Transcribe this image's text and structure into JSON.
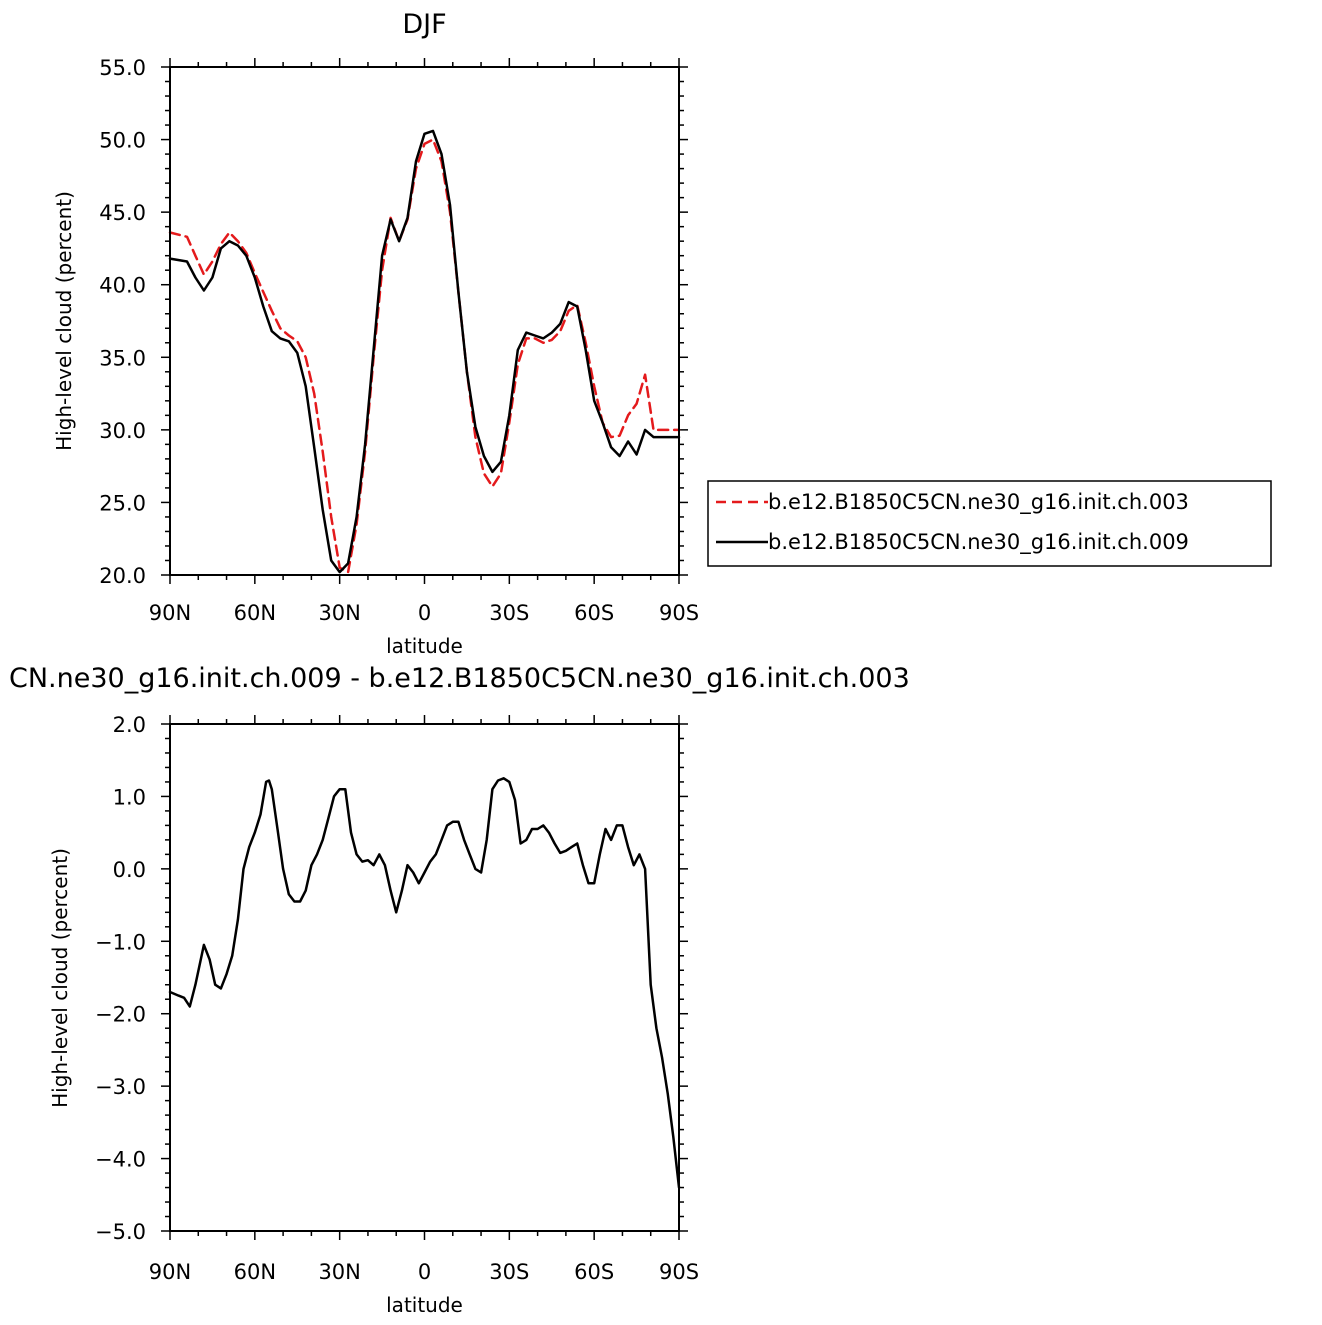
{
  "chart_data": [
    {
      "type": "line",
      "title": "DJF",
      "xlabel": "latitude",
      "ylabel": "High-level cloud (percent)",
      "xlim": [
        -90,
        90
      ],
      "ylim": [
        20,
        55
      ],
      "x_ticks": [
        -90,
        -60,
        -30,
        0,
        30,
        60,
        90
      ],
      "x_tick_labels": [
        "90N",
        "60N",
        "30N",
        "0",
        "30S",
        "60S",
        "90S"
      ],
      "y_ticks": [
        20,
        25,
        30,
        35,
        40,
        45,
        50,
        55
      ],
      "y_tick_labels": [
        "20.0",
        "25.0",
        "30.0",
        "35.0",
        "40.0",
        "45.0",
        "50.0",
        "55.0"
      ],
      "legend_placement": "right",
      "series": [
        {
          "name": "b.e12.B1850C5CN.ne30_g16.init.ch.003",
          "color": "#e41a1c",
          "dash": "dashed",
          "x": [
            -90,
            -84,
            -81,
            -78,
            -75,
            -72,
            -69,
            -66,
            -63,
            -60,
            -57,
            -54,
            -51,
            -48,
            -45,
            -42,
            -39,
            -36,
            -33,
            -30,
            -27,
            -24,
            -21,
            -18,
            -15,
            -12,
            -9,
            -6,
            -3,
            0,
            3,
            6,
            9,
            12,
            15,
            18,
            21,
            24,
            27,
            30,
            33,
            36,
            39,
            42,
            45,
            48,
            51,
            54,
            57,
            60,
            63,
            66,
            69,
            72,
            75,
            78,
            81,
            84,
            86,
            88,
            90
          ],
          "y": [
            43.6,
            43.3,
            42.0,
            40.7,
            41.6,
            42.8,
            43.6,
            43.0,
            42.2,
            40.8,
            39.5,
            38.2,
            37.0,
            36.5,
            36.1,
            35.0,
            32.5,
            28.5,
            24.0,
            20.5,
            20.2,
            23.5,
            28.5,
            35.0,
            41.0,
            44.6,
            43.0,
            44.5,
            48.0,
            49.7,
            50.0,
            48.5,
            45.0,
            39.5,
            34.0,
            29.5,
            27.0,
            26.1,
            27.0,
            30.5,
            34.5,
            36.3,
            36.3,
            36.0,
            36.2,
            36.8,
            38.2,
            38.6,
            36.0,
            33.0,
            30.5,
            29.5,
            29.6,
            31.0,
            31.8,
            33.8,
            30.0,
            30.0,
            30.0,
            30.0,
            30.0
          ]
        },
        {
          "name": "b.e12.B1850C5CN.ne30_g16.init.ch.009",
          "color": "#000000",
          "dash": "solid",
          "x": [
            -90,
            -84,
            -81,
            -78,
            -75,
            -72,
            -69,
            -66,
            -63,
            -60,
            -57,
            -54,
            -51,
            -48,
            -45,
            -42,
            -39,
            -36,
            -33,
            -30,
            -27,
            -24,
            -21,
            -18,
            -15,
            -12,
            -9,
            -6,
            -3,
            0,
            3,
            6,
            9,
            12,
            15,
            18,
            21,
            24,
            27,
            30,
            33,
            36,
            39,
            42,
            45,
            48,
            51,
            54,
            57,
            60,
            63,
            66,
            69,
            72,
            75,
            78,
            81,
            84,
            86,
            88,
            90
          ],
          "y": [
            41.8,
            41.6,
            40.5,
            39.6,
            40.5,
            42.5,
            43.0,
            42.7,
            42.0,
            40.5,
            38.5,
            36.8,
            36.3,
            36.1,
            35.3,
            33.0,
            28.8,
            24.5,
            21.0,
            20.2,
            20.8,
            24.0,
            29.0,
            35.5,
            42.0,
            44.5,
            43.0,
            44.6,
            48.5,
            50.4,
            50.6,
            49.0,
            45.5,
            39.5,
            34.0,
            30.2,
            28.2,
            27.1,
            27.8,
            31.0,
            35.5,
            36.7,
            36.5,
            36.3,
            36.7,
            37.3,
            38.8,
            38.5,
            35.5,
            32.0,
            30.5,
            28.8,
            28.2,
            29.2,
            28.3,
            30.0,
            29.5,
            29.5,
            29.5,
            29.5,
            29.5
          ]
        }
      ]
    },
    {
      "type": "line",
      "title": "CN.ne30_g16.init.ch.009 - b.e12.B1850C5CN.ne30_g16.init.ch.003",
      "xlabel": "latitude",
      "ylabel": "High-level cloud (percent)",
      "xlim": [
        -90,
        90
      ],
      "ylim": [
        -5,
        2
      ],
      "x_ticks": [
        -90,
        -60,
        -30,
        0,
        30,
        60,
        90
      ],
      "x_tick_labels": [
        "90N",
        "60N",
        "30N",
        "0",
        "30S",
        "60S",
        "90S"
      ],
      "y_ticks": [
        -5,
        -4,
        -3,
        -2,
        -1,
        0,
        1,
        2
      ],
      "y_tick_labels": [
        "−5.0",
        "−4.0",
        "−3.0",
        "−2.0",
        "−1.0",
        "0.0",
        "1.0",
        "2.0"
      ],
      "series": [
        {
          "color": "#000000",
          "dash": "solid",
          "x": [
            -90,
            -87,
            -85,
            -83,
            -81,
            -78,
            -76,
            -74,
            -72,
            -70,
            -68,
            -66,
            -64,
            -62,
            -60,
            -58,
            -56,
            -55,
            -54,
            -52,
            -50,
            -48,
            -46,
            -44,
            -42,
            -40,
            -38,
            -36,
            -34,
            -32,
            -31,
            -30,
            -28,
            -26,
            -24,
            -22,
            -20,
            -18,
            -16,
            -14,
            -12,
            -10,
            -8,
            -6,
            -4,
            -2,
            0,
            2,
            4,
            6,
            8,
            10,
            12,
            14,
            16,
            18,
            20,
            22,
            24,
            26,
            28,
            30,
            32,
            34,
            36,
            38,
            40,
            42,
            44,
            46,
            48,
            50,
            52,
            54,
            56,
            58,
            60,
            62,
            64,
            66,
            68,
            70,
            72,
            74,
            76,
            78,
            80,
            82,
            84,
            86,
            88,
            90
          ],
          "y": [
            -1.7,
            -1.75,
            -1.78,
            -1.9,
            -1.6,
            -1.05,
            -1.25,
            -1.6,
            -1.65,
            -1.45,
            -1.2,
            -0.7,
            0.0,
            0.3,
            0.5,
            0.75,
            1.2,
            1.22,
            1.1,
            0.55,
            0.0,
            -0.35,
            -0.45,
            -0.45,
            -0.3,
            0.05,
            0.2,
            0.4,
            0.7,
            1.0,
            1.05,
            1.1,
            1.1,
            0.5,
            0.2,
            0.1,
            0.12,
            0.05,
            0.2,
            0.05,
            -0.3,
            -0.6,
            -0.3,
            0.05,
            -0.05,
            -0.2,
            -0.05,
            0.1,
            0.2,
            0.4,
            0.6,
            0.65,
            0.65,
            0.4,
            0.2,
            0.0,
            -0.05,
            0.4,
            1.1,
            1.22,
            1.25,
            1.2,
            0.95,
            0.35,
            0.4,
            0.55,
            0.55,
            0.6,
            0.5,
            0.35,
            0.22,
            0.25,
            0.3,
            0.35,
            0.05,
            -0.2,
            -0.2,
            0.2,
            0.55,
            0.4,
            0.6,
            0.6,
            0.3,
            0.05,
            0.2,
            0.0,
            -1.6,
            -2.2,
            -2.6,
            -3.1,
            -3.7,
            -4.4
          ]
        }
      ]
    }
  ]
}
